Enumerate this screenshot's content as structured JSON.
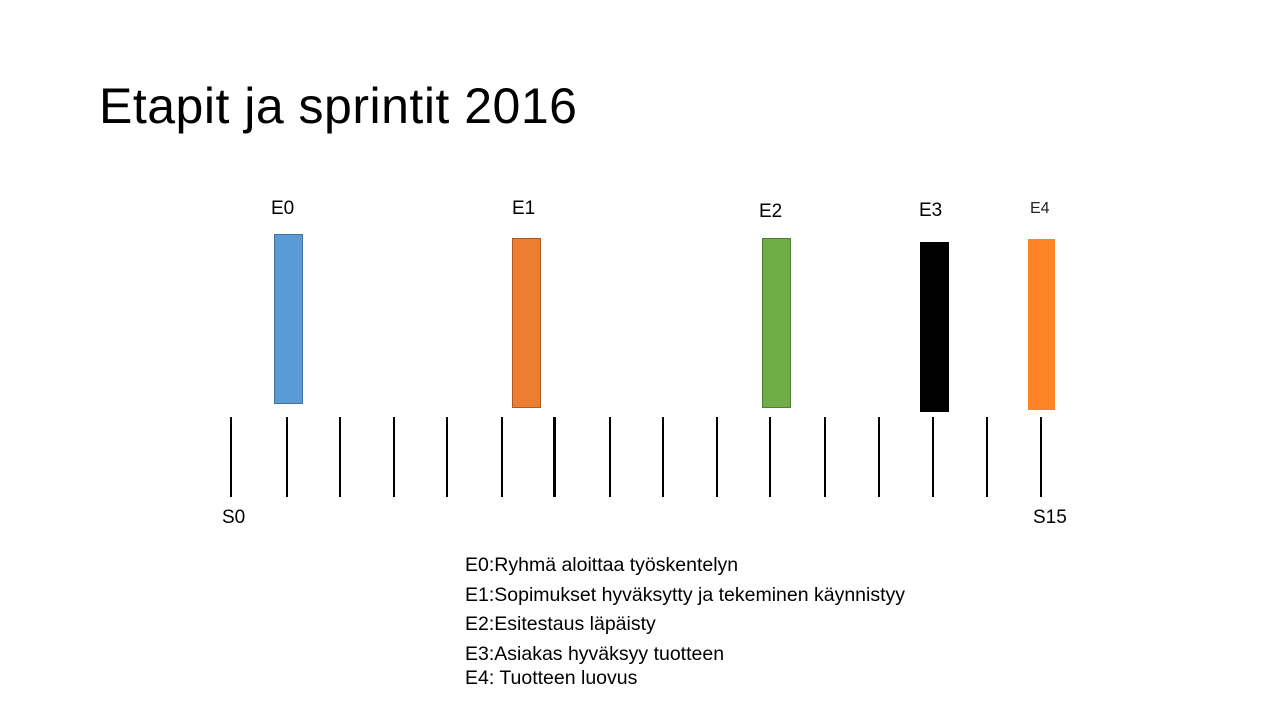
{
  "slide": {
    "title": "Etapit ja sprintit 2016"
  },
  "milestones": [
    {
      "id": "E0",
      "label": "E0",
      "color": "#5b9bd5"
    },
    {
      "id": "E1",
      "label": "E1",
      "color": "#ed7d31"
    },
    {
      "id": "E2",
      "label": "E2",
      "color": "#70ad47"
    },
    {
      "id": "E3",
      "label": "E3",
      "color": "#000000"
    },
    {
      "id": "E4",
      "label": "E4",
      "color": "#ff8426"
    }
  ],
  "sprint_axis": {
    "start_label": "S0",
    "end_label": "S15",
    "tick_count": 16
  },
  "legend": [
    "E0:Ryhmä aloittaa työskentelyn",
    "E1:Sopimukset hyväksytty ja tekeminen käynnistyy",
    "E2:Esitestaus läpäisty",
    "E3:Asiakas hyväksyy tuotteen",
    "E4: Tuotteen luovus"
  ]
}
